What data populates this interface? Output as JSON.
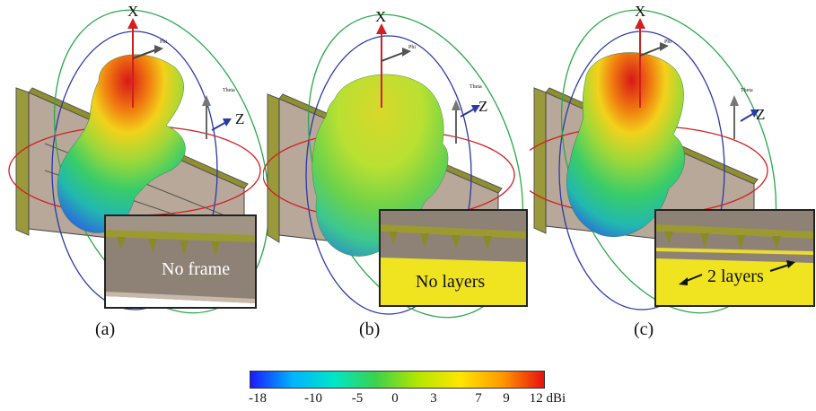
{
  "panels": [
    {
      "caption": "(a)",
      "inset_label": "No frame",
      "axis_x": "X",
      "axis_z": "Z",
      "phi": "Phi",
      "theta": "Theta"
    },
    {
      "caption": "(b)",
      "inset_label": "No layers",
      "axis_x": "X",
      "axis_z": "Z",
      "phi": "Phi",
      "theta": "Theta"
    },
    {
      "caption": "(c)",
      "inset_label": "2 layers",
      "axis_x": "X",
      "axis_z": "Z",
      "phi": "Phi",
      "theta": "Theta"
    }
  ],
  "colorbar": {
    "ticks": [
      "-18",
      "-10",
      "-5",
      "0",
      "3",
      "7",
      "9",
      "12 dBi"
    ],
    "colors": [
      "#1a1aff",
      "#00b4ff",
      "#00e6c8",
      "#3cd24a",
      "#b4e600",
      "#ffe600",
      "#ff9a00",
      "#e81010"
    ]
  }
}
